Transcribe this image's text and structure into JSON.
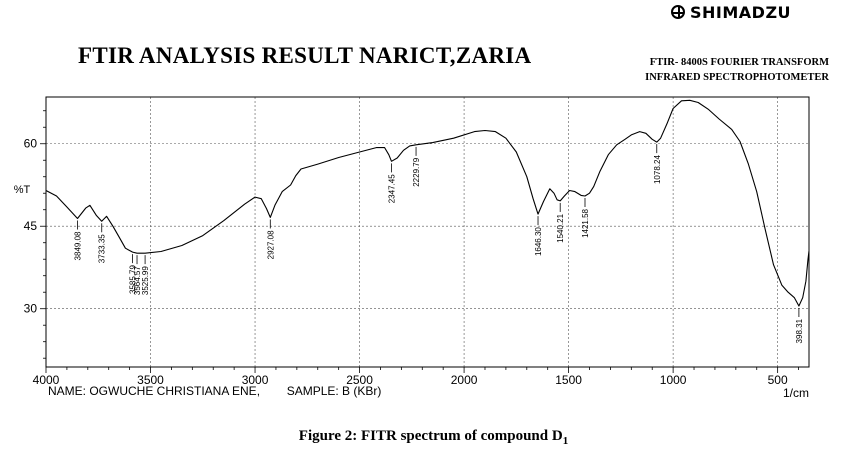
{
  "logo": {
    "icon": "shimadzu-logo-icon",
    "text": "SHIMADZU"
  },
  "header": {
    "title": "FTIR ANALYSIS RESULT NARICT,ZARIA",
    "instrument_line1": "FTIR- 8400S FOURIER TRANSFORM",
    "instrument_line2": "INFRARED SPECTROPHOTOMETER"
  },
  "footer": {
    "name_label": "NAME: OGWUCHE CHRISTIANA ENE,",
    "sample_label": "SAMPLE: B (KBr)"
  },
  "caption": {
    "text": "Figure 2: FITR spectrum of compound D",
    "subscript": "1"
  },
  "chart_data": {
    "type": "line",
    "title": "",
    "xlabel": "1/cm",
    "ylabel": "%T",
    "xlim": [
      4000,
      350
    ],
    "ylim": [
      19.4,
      68.5
    ],
    "x_ticks": [
      4000,
      3500,
      3000,
      2500,
      2000,
      1500,
      1000,
      500
    ],
    "y_ticks": [
      30,
      45,
      60
    ],
    "grid": true,
    "color": "#000000",
    "series": [
      {
        "points": [
          [
            4000,
            51.5
          ],
          [
            3950,
            50.5
          ],
          [
            3900,
            48.5
          ],
          [
            3849.08,
            46.4
          ],
          [
            3810,
            48.3
          ],
          [
            3790,
            48.8
          ],
          [
            3760,
            47.0
          ],
          [
            3733.35,
            45.9
          ],
          [
            3710,
            46.8
          ],
          [
            3680,
            45.0
          ],
          [
            3650,
            43.0
          ],
          [
            3620,
            41.0
          ],
          [
            3585.79,
            40.3
          ],
          [
            3564.57,
            40.1
          ],
          [
            3525.99,
            40.1
          ],
          [
            3450,
            40.4
          ],
          [
            3350,
            41.5
          ],
          [
            3250,
            43.3
          ],
          [
            3150,
            46.0
          ],
          [
            3050,
            49.0
          ],
          [
            3000,
            50.3
          ],
          [
            2970,
            50.0
          ],
          [
            2945,
            48.2
          ],
          [
            2927.08,
            46.6
          ],
          [
            2905,
            48.8
          ],
          [
            2870,
            51.3
          ],
          [
            2830,
            52.5
          ],
          [
            2805,
            54.2
          ],
          [
            2780,
            55.4
          ],
          [
            2700,
            56.3
          ],
          [
            2600,
            57.5
          ],
          [
            2500,
            58.5
          ],
          [
            2420,
            59.3
          ],
          [
            2380,
            59.3
          ],
          [
            2360,
            58.0
          ],
          [
            2347.45,
            56.8
          ],
          [
            2320,
            57.4
          ],
          [
            2290,
            58.8
          ],
          [
            2260,
            59.6
          ],
          [
            2229.79,
            59.8
          ],
          [
            2150,
            60.2
          ],
          [
            2050,
            61.0
          ],
          [
            1950,
            62.2
          ],
          [
            1900,
            62.4
          ],
          [
            1850,
            62.2
          ],
          [
            1800,
            61.0
          ],
          [
            1750,
            58.5
          ],
          [
            1700,
            54.0
          ],
          [
            1670,
            50.0
          ],
          [
            1646.3,
            47.2
          ],
          [
            1620,
            49.5
          ],
          [
            1590,
            51.8
          ],
          [
            1570,
            51.0
          ],
          [
            1555,
            49.8
          ],
          [
            1540.21,
            49.6
          ],
          [
            1520,
            50.5
          ],
          [
            1495,
            51.5
          ],
          [
            1470,
            51.3
          ],
          [
            1440,
            50.6
          ],
          [
            1421.58,
            50.5
          ],
          [
            1400,
            51.0
          ],
          [
            1380,
            52.2
          ],
          [
            1350,
            55.0
          ],
          [
            1310,
            58.0
          ],
          [
            1270,
            59.8
          ],
          [
            1230,
            60.8
          ],
          [
            1200,
            61.6
          ],
          [
            1160,
            62.2
          ],
          [
            1130,
            61.9
          ],
          [
            1100,
            60.8
          ],
          [
            1078.24,
            60.3
          ],
          [
            1060,
            61.0
          ],
          [
            1030,
            63.6
          ],
          [
            1000,
            66.4
          ],
          [
            960,
            67.8
          ],
          [
            920,
            67.9
          ],
          [
            880,
            67.5
          ],
          [
            830,
            66.2
          ],
          [
            780,
            64.5
          ],
          [
            720,
            62.6
          ],
          [
            680,
            60.4
          ],
          [
            640,
            56.3
          ],
          [
            600,
            51.3
          ],
          [
            560,
            44.5
          ],
          [
            520,
            38.0
          ],
          [
            480,
            34.3
          ],
          [
            450,
            33.0
          ],
          [
            420,
            32.0
          ],
          [
            398.31,
            30.5
          ],
          [
            380,
            32.0
          ],
          [
            365,
            35.0
          ],
          [
            355,
            39.0
          ],
          [
            350,
            40.5
          ]
        ]
      }
    ],
    "annotations": [
      {
        "x": 3849.08,
        "label": "3849.08"
      },
      {
        "x": 3733.35,
        "label": "3733.35"
      },
      {
        "x": 3585.79,
        "label": "3585.79"
      },
      {
        "x": 3564.57,
        "label": "3564.57"
      },
      {
        "x": 3525.99,
        "label": "3525.99"
      },
      {
        "x": 2927.08,
        "label": "2927.08"
      },
      {
        "x": 2347.45,
        "label": "2347.45"
      },
      {
        "x": 2229.79,
        "label": "2229.79"
      },
      {
        "x": 1646.3,
        "label": "1646.30"
      },
      {
        "x": 1540.21,
        "label": "1540.21"
      },
      {
        "x": 1421.58,
        "label": "1421.58"
      },
      {
        "x": 1078.24,
        "label": "1078.24"
      },
      {
        "x": 398.31,
        "label": "398.31"
      }
    ]
  }
}
